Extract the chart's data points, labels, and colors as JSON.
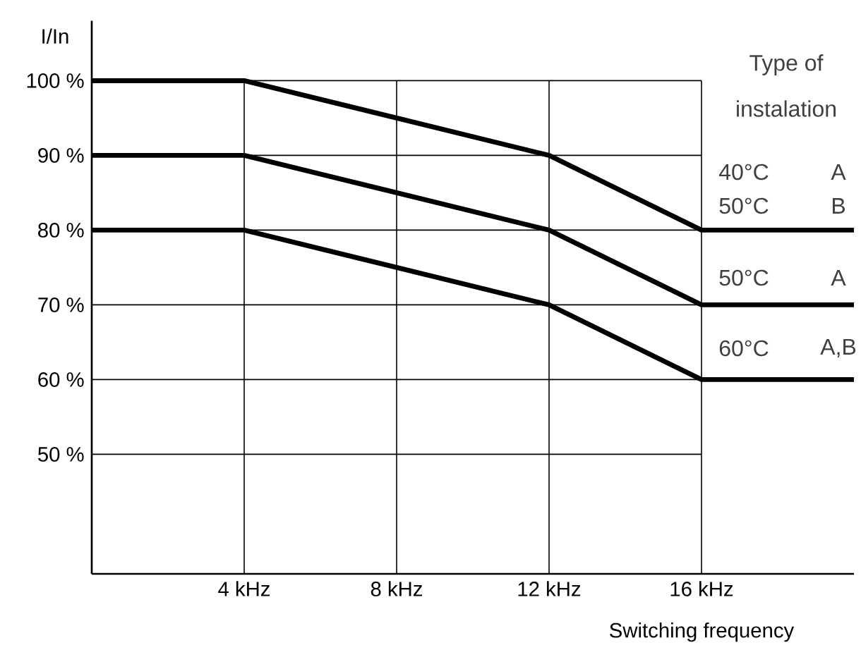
{
  "chart_data": {
    "type": "line",
    "xlabel": "Switching frequency",
    "ylabel": "I/In",
    "x": [
      0,
      4,
      12,
      16,
      20
    ],
    "series": [
      {
        "color": "#000000",
        "values": [
          100,
          100,
          90,
          80,
          80
        ]
      },
      {
        "color": "#000000",
        "values": [
          90,
          90,
          80,
          70,
          70
        ]
      },
      {
        "color": "#000000",
        "values": [
          80,
          80,
          70,
          60,
          60
        ]
      }
    ],
    "xlim": [
      0,
      20
    ],
    "ylim": [
      34,
      108
    ],
    "xticks": [
      {
        "value": 4,
        "label": "4 kHz"
      },
      {
        "value": 8,
        "label": "8 kHz"
      },
      {
        "value": 12,
        "label": "12 kHz"
      },
      {
        "value": 16,
        "label": "16 kHz"
      }
    ],
    "yticks": [
      {
        "value": 50,
        "label": "50 %"
      },
      {
        "value": 60,
        "label": "60 %"
      },
      {
        "value": 70,
        "label": "70 %"
      },
      {
        "value": 80,
        "label": "80 %"
      },
      {
        "value": 90,
        "label": "90 %"
      },
      {
        "value": 100,
        "label": "100 %"
      }
    ],
    "grid": true,
    "marker": "none",
    "line_style": "solid",
    "annotations": [
      "Type of",
      "instalation",
      "40°C",
      "A",
      "50°C",
      "B",
      "50°C",
      "A",
      "60°C",
      "A,B"
    ]
  }
}
